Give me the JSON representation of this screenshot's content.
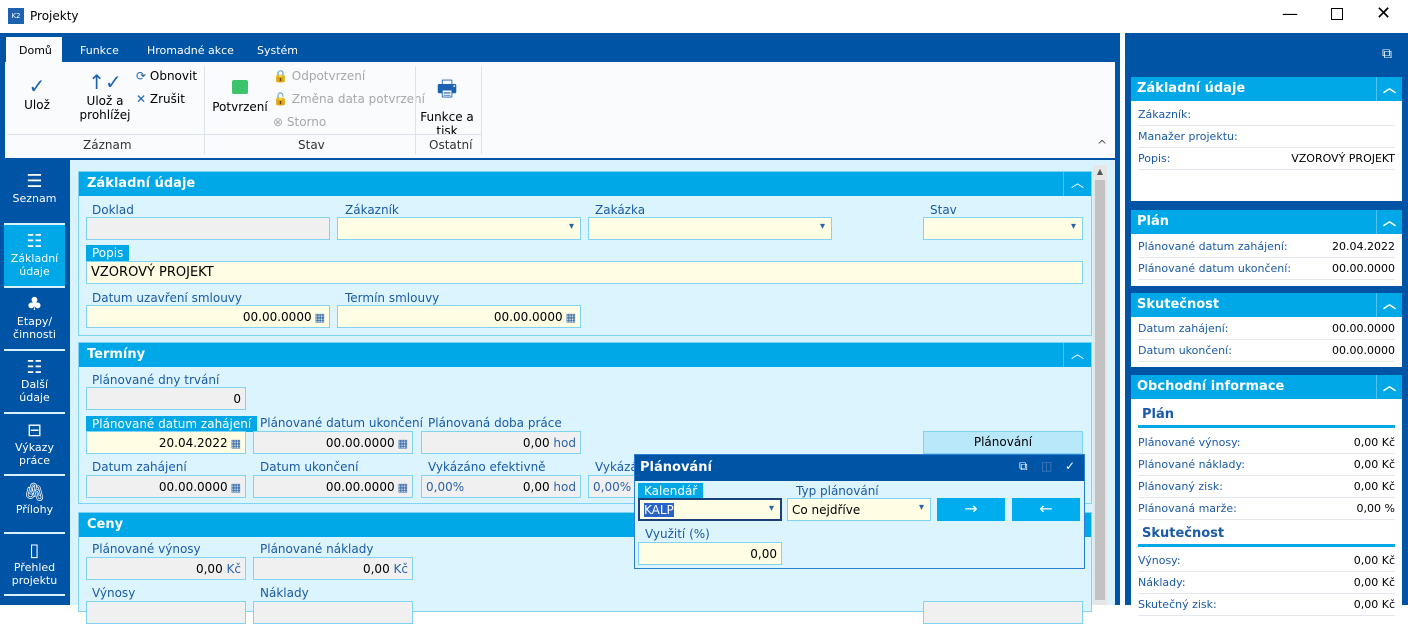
{
  "window": {
    "title": "Projekty",
    "app_icon": "K2"
  },
  "ribbon": {
    "tabs": [
      "Domů",
      "Funkce",
      "Hromadné akce",
      "Systém"
    ],
    "uloz": "Ulož",
    "uloz_prohlizej": "Ulož a prohlížej",
    "obnovit": "Obnovit",
    "zrusit": "Zrušit",
    "potvrzeni": "Potvrzení",
    "odpotvrzeni": "Odpotvrzení",
    "zmena": "Změna data potvrzení",
    "storno": "Storno",
    "funkce_tisk": "Funkce a tisk",
    "groups": [
      "Záznam",
      "Stav",
      "Ostatní"
    ]
  },
  "sidebar": {
    "items": [
      {
        "label": "Seznam",
        "icon": "menu-icon"
      },
      {
        "label": "Základní údaje",
        "icon": "list-icon"
      },
      {
        "label": "Etapy/ činnosti",
        "icon": "hierarchy-icon"
      },
      {
        "label": "Další údaje",
        "icon": "list-icon"
      },
      {
        "label": "Výkazy práce",
        "icon": "archive-icon"
      },
      {
        "label": "Přílohy",
        "icon": "paperclip-icon"
      },
      {
        "label": "Přehled projektu",
        "icon": "overview-icon"
      }
    ]
  },
  "zakladni": {
    "title": "Základní údaje",
    "doklad_label": "Doklad",
    "doklad": "",
    "zakaznik_label": "Zákazník",
    "zakaznik": "",
    "zakazka_label": "Zakázka",
    "zakazka": "",
    "stav_label": "Stav",
    "stav": "",
    "popis_label": "Popis",
    "popis": "VZOROVÝ PROJEKT",
    "datum_uzavreni_label": "Datum uzavření smlouvy",
    "datum_uzavreni": "00.00.0000",
    "termin_label": "Termín smlouvy",
    "termin": "00.00.0000"
  },
  "terminy": {
    "title": "Termíny",
    "dny_label": "Plánované dny trvání",
    "dny": "0",
    "pl_zahajeni_label": "Plánované datum zahájení",
    "pl_zahajeni": "20.04.2022",
    "pl_ukonceni_label": "Plánované datum ukončení",
    "pl_ukonceni": "00.00.0000",
    "doba_label": "Plánovaná doba práce",
    "doba": "0,00",
    "unit": "hod",
    "planovani_button": "Plánování",
    "zahajeni_label": "Datum zahájení",
    "zahajeni": "00.00.0000",
    "ukonceni_label": "Datum ukončení",
    "ukonceni": "00.00.0000",
    "vykazano_label": "Vykázáno efektivně",
    "vykazano_pct": "0,00%",
    "vykazano": "0,00",
    "vykazano2_label": "Vykázáno",
    "vykazano2_pct": "0,00%"
  },
  "ceny": {
    "title": "Ceny",
    "pl_vynosy_label": "Plánované výnosy",
    "pl_vynosy": "0,00",
    "pl_naklady_label": "Plánované náklady",
    "pl_naklady": "0,00",
    "currency": "Kč",
    "vynosy_label": "Výnosy",
    "naklady_label": "Náklady"
  },
  "popup": {
    "title": "Plánování",
    "kalendar_label": "Kalendář",
    "kalendar": "KALP",
    "typ_label": "Typ plánování",
    "typ": "Co nejdříve",
    "vyuziti_label": "Využití (%)",
    "vyuziti": "0,00",
    "forward": "→",
    "backward": "←"
  },
  "right": {
    "zakladni": {
      "title": "Základní údaje",
      "rows": [
        [
          "Zákazník:",
          ""
        ],
        [
          "Manažer projektu:",
          ""
        ],
        [
          "Popis:",
          "VZOROVÝ PROJEKT"
        ]
      ]
    },
    "plan": {
      "title": "Plán",
      "rows": [
        [
          "Plánované datum zahájení:",
          "20.04.2022"
        ],
        [
          "Plánované datum ukončení:",
          "00.00.0000"
        ]
      ]
    },
    "skutecnost": {
      "title": "Skutečnost",
      "rows": [
        [
          "Datum zahájení:",
          "00.00.0000"
        ],
        [
          "Datum ukončení:",
          "00.00.0000"
        ]
      ]
    },
    "obchodni": {
      "title": "Obchodní informace",
      "plan_title": "Plán",
      "plan_rows": [
        [
          "Plánované výnosy:",
          "0,00 Kč"
        ],
        [
          "Plánované náklady:",
          "0,00 Kč"
        ],
        [
          "Plánovaný zisk:",
          "0,00 Kč"
        ],
        [
          "Plánovaná marže:",
          "0,00 %"
        ]
      ],
      "skut_title": "Skutečnost",
      "skut_rows": [
        [
          "Výnosy:",
          "0,00 Kč"
        ],
        [
          "Náklady:",
          "0,00 Kč"
        ],
        [
          "Skutečný zisk:",
          "0,00 Kč"
        ]
      ]
    }
  },
  "colors": {
    "dark_blue": "#0054a6",
    "accent": "#00a8e8",
    "field_bg": "#fffde3"
  }
}
